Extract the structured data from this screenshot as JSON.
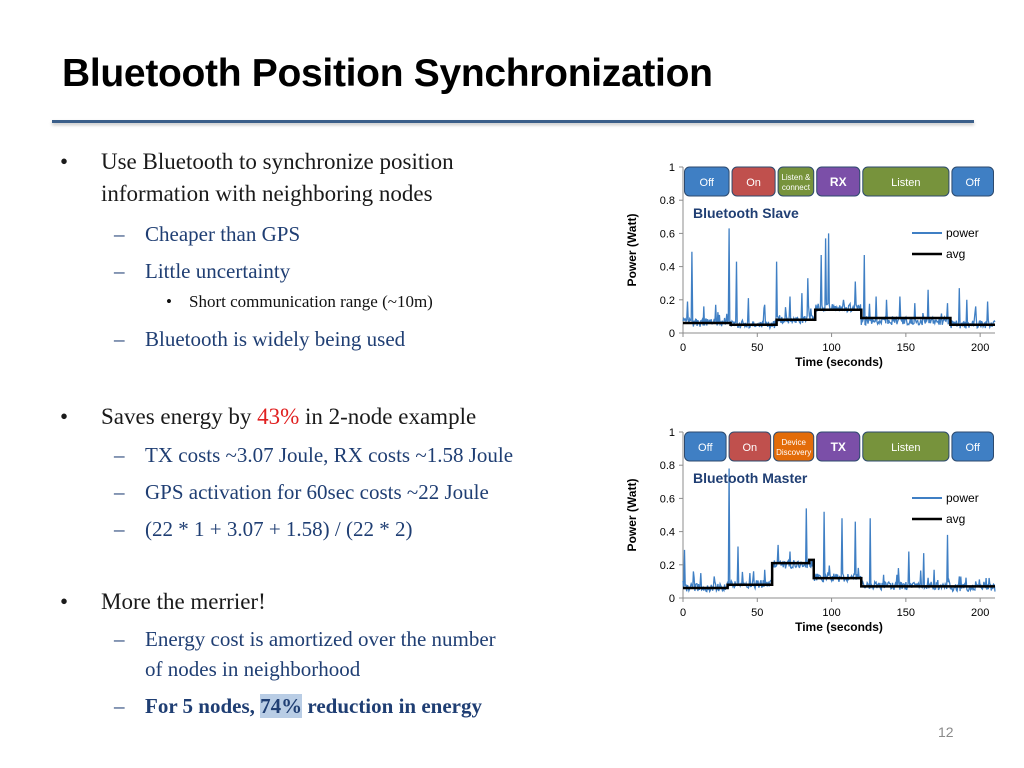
{
  "slide": {
    "title": "Bluetooth Position Synchronization",
    "page_number": "12"
  },
  "bullets": {
    "b1": {
      "line1": "Use Bluetooth to synchronize position",
      "line2": "information with neighboring nodes",
      "sub1": "Cheaper than GPS",
      "sub2": "Little uncertainty",
      "subsub1": "Short communication range (~10m)",
      "sub3": "Bluetooth is widely being used"
    },
    "b2": {
      "pre": "Saves energy by ",
      "highlight": "43%",
      "post": " in 2-node example",
      "sub1": "TX costs ~3.07 Joule, RX costs ~1.58 Joule",
      "sub2": "GPS activation for 60sec costs ~22 Joule",
      "sub3": "(22 * 1 + 3.07 + 1.58) / (22 * 2)"
    },
    "b3": {
      "line1": "More the merrier!",
      "sub1_line1": "Energy cost is amortized over the number",
      "sub1_line2": "of nodes in neighborhood",
      "sub2_pre": "For 5 nodes, ",
      "sub2_highlight": "74%",
      "sub2_post": " reduction in energy"
    }
  },
  "chart_data": [
    {
      "type": "line",
      "title": "Bluetooth Slave",
      "xlabel": "Time (seconds)",
      "ylabel": "Power (Watt)",
      "xlim": [
        0,
        210
      ],
      "ylim": [
        0,
        1
      ],
      "xticks": [
        0,
        50,
        100,
        150,
        200
      ],
      "yticks": [
        0,
        0.2,
        0.4,
        0.6,
        0.8,
        1
      ],
      "ytick_labels": [
        "0",
        "0.2",
        "0.4",
        "0.6",
        "0.8",
        "1"
      ],
      "legend": [
        "power",
        "avg"
      ],
      "legend_position": "right",
      "colors": {
        "power": "#3f7fc4",
        "avg": "#000000"
      },
      "phases": [
        {
          "label": "Off",
          "x0": 0,
          "x1": 32,
          "color": "#3f7fc4"
        },
        {
          "label": "On",
          "x0": 32,
          "x1": 63,
          "color": "#c0504d"
        },
        {
          "label": "Listen & connect",
          "x0": 63,
          "x1": 89,
          "color": "#77933c"
        },
        {
          "label": "RX",
          "x0": 89,
          "x1": 120,
          "color": "#7b4fa8"
        },
        {
          "label": "Listen",
          "x0": 120,
          "x1": 180,
          "color": "#77933c"
        },
        {
          "label": "Off",
          "x0": 180,
          "x1": 210,
          "color": "#3f7fc4"
        }
      ],
      "series": [
        {
          "name": "avg",
          "x": [
            0,
            32,
            63,
            89,
            120,
            180,
            210
          ],
          "y": [
            0.06,
            0.05,
            0.08,
            0.14,
            0.09,
            0.05,
            0.05
          ]
        },
        {
          "name": "power",
          "base": [
            [
              0,
              0.06
            ],
            [
              32,
              0.05
            ],
            [
              63,
              0.08
            ],
            [
              89,
              0.15
            ],
            [
              120,
              0.07
            ],
            [
              180,
              0.05
            ],
            [
              210,
              0.05
            ]
          ],
          "spikes": [
            [
              3,
              0.19
            ],
            [
              6,
              0.49
            ],
            [
              14,
              0.16
            ],
            [
              22,
              0.17
            ],
            [
              31,
              0.63
            ],
            [
              36,
              0.43
            ],
            [
              44,
              0.21
            ],
            [
              55,
              0.17
            ],
            [
              63,
              0.43
            ],
            [
              72,
              0.22
            ],
            [
              80,
              0.24
            ],
            [
              84,
              0.33
            ],
            [
              93,
              0.47
            ],
            [
              96,
              0.57
            ],
            [
              98,
              0.6
            ],
            [
              108,
              0.2
            ],
            [
              116,
              0.31
            ],
            [
              122,
              0.47
            ],
            [
              130,
              0.22
            ],
            [
              137,
              0.2
            ],
            [
              146,
              0.22
            ],
            [
              156,
              0.18
            ],
            [
              165,
              0.26
            ],
            [
              178,
              0.18
            ],
            [
              186,
              0.27
            ],
            [
              191,
              0.2
            ],
            [
              197,
              0.16
            ],
            [
              205,
              0.19
            ]
          ]
        }
      ]
    },
    {
      "type": "line",
      "title": "Bluetooth Master",
      "xlabel": "Time (seconds)",
      "ylabel": "Power (Watt)",
      "xlim": [
        0,
        210
      ],
      "ylim": [
        0,
        1
      ],
      "xticks": [
        0,
        50,
        100,
        150,
        200
      ],
      "yticks": [
        0,
        0.2,
        0.4,
        0.6,
        0.8,
        1
      ],
      "ytick_labels": [
        "0",
        "0.2",
        "0.4",
        "0.6",
        "0.8",
        "1"
      ],
      "legend": [
        "power",
        "avg"
      ],
      "legend_position": "right",
      "colors": {
        "power": "#3f7fc4",
        "avg": "#000000"
      },
      "phases": [
        {
          "label": "Off",
          "x0": 0,
          "x1": 30,
          "color": "#3f7fc4"
        },
        {
          "label": "On",
          "x0": 30,
          "x1": 60,
          "color": "#c0504d"
        },
        {
          "label": "Device Discovery",
          "x0": 60,
          "x1": 89,
          "color": "#e36c09"
        },
        {
          "label": "TX",
          "x0": 89,
          "x1": 120,
          "color": "#7b4fa8"
        },
        {
          "label": "Listen",
          "x0": 120,
          "x1": 180,
          "color": "#77933c"
        },
        {
          "label": "Off",
          "x0": 180,
          "x1": 210,
          "color": "#3f7fc4"
        }
      ],
      "series": [
        {
          "name": "avg",
          "x": [
            0,
            30,
            60,
            85,
            88,
            120,
            210
          ],
          "y": [
            0.06,
            0.08,
            0.21,
            0.23,
            0.12,
            0.07,
            0.07
          ]
        },
        {
          "name": "power",
          "base": [
            [
              0,
              0.06
            ],
            [
              30,
              0.08
            ],
            [
              60,
              0.2
            ],
            [
              88,
              0.12
            ],
            [
              120,
              0.07
            ],
            [
              180,
              0.06
            ],
            [
              210,
              0.06
            ]
          ],
          "spikes": [
            [
              1,
              0.29
            ],
            [
              7,
              0.16
            ],
            [
              12,
              0.15
            ],
            [
              21,
              0.13
            ],
            [
              31,
              0.78
            ],
            [
              37,
              0.31
            ],
            [
              45,
              0.15
            ],
            [
              55,
              0.17
            ],
            [
              64,
              0.32
            ],
            [
              72,
              0.28
            ],
            [
              83,
              0.54
            ],
            [
              95,
              0.52
            ],
            [
              107,
              0.48
            ],
            [
              116,
              0.46
            ],
            [
              126,
              0.48
            ],
            [
              135,
              0.14
            ],
            [
              145,
              0.18
            ],
            [
              152,
              0.28
            ],
            [
              162,
              0.27
            ],
            [
              169,
              0.17
            ],
            [
              178,
              0.38
            ],
            [
              186,
              0.13
            ],
            [
              197,
              0.1
            ],
            [
              204,
              0.12
            ]
          ]
        }
      ]
    }
  ]
}
